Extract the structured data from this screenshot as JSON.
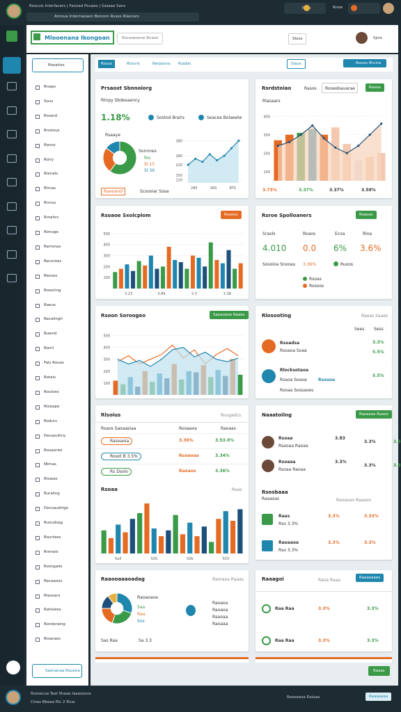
{
  "browser": {
    "tab": "Roscuis Interfacers | Fanoad Pouaes | Gaiaaa Sans",
    "url": "Arnoua Inbernaoaen Benonn Ruses Rlasnars",
    "tab2": "Rloa",
    "tab3": "Rnoe"
  },
  "header": {
    "logo": "Mlooenana Ikongoan",
    "search": "Rocawoaroe Bnaoo",
    "button": "Sloos",
    "user": "Sjuis"
  },
  "tabs": [
    "Rioua",
    "Rlouris",
    "Rerpoons",
    "Ruobls"
  ],
  "actions": [
    "Slaus",
    "Rouou Bruice"
  ],
  "sidebar": {
    "search": "Rooaties",
    "items": [
      "Rnaps",
      "Sous",
      "Rsoerd",
      "Rnotous",
      "Ronos",
      "Roiry",
      "Rienals",
      "Rhnas",
      "Rnnus",
      "Rmahrs",
      "Ronuga",
      "Rerronas",
      "Recontes",
      "Rexsos",
      "Roooring",
      "Raeus",
      "Recalingh",
      "Ruwnd",
      "Rornl",
      "Fals Rouas",
      "Rotais",
      "Rouloes",
      "Rlooape",
      "Rodurs",
      "Decaoutiny",
      "Rouaoriet",
      "Ntmas",
      "Rlowas",
      "Ruraiing",
      "Decuaudrigo",
      "Ruoudsag",
      "Rourtees",
      "Rrenais",
      "Rosngads",
      "Recaaoos",
      "Rlesoars",
      "Ratiseles",
      "Rondsraing",
      "Rioaraes"
    ],
    "footer": "Saonanaa Rouona"
  },
  "cards": [
    {
      "title": "Prsaoxt Sbnnoiorg",
      "subtitle": "Rtnpy Sbdesaency",
      "kpi": "1.18%",
      "legend": [
        "Sostod Bralrs",
        "Seacea Bolaeete"
      ],
      "pie_title": "Rsaaye",
      "pie_legend": [
        "Sonnnes",
        "Rio",
        "Sl 15",
        "Sl 36"
      ],
      "pie": {
        "type": "pie",
        "values": [
          60,
          25,
          15
        ],
        "colors": [
          "#3a9a48",
          "#e56b24",
          "#1f86ad"
        ],
        "donut": true
      },
      "line": {
        "type": "line",
        "ylim": [
          100,
          400
        ],
        "yticks": [
          120,
          150,
          220,
          280,
          380
        ],
        "xlabels": [
          "285",
          "2RS",
          "RTS"
        ],
        "series": [
          {
            "kind": "line",
            "values": [
              220,
              260,
              240,
              290,
              250,
              280,
              330,
              380
            ],
            "color": "#1f86ad",
            "area": "#bfe1ee",
            "markers": true
          }
        ]
      },
      "badge": "Rsesiand",
      "note": "Scsooiar Sosa"
    },
    {
      "title": "Rsrdstoiao",
      "filter": "Rasos",
      "input": "Rooesbauarae",
      "button": "Rasoa",
      "chart_title": "Rlasaars",
      "chart": {
        "type": "combo",
        "ylim": [
          50,
          450
        ],
        "yticks": [
          100,
          200,
          300,
          400
        ],
        "series": [
          {
            "kind": "bar",
            "values": [
              270,
              300,
              310,
              330,
              300,
              340,
              250,
              160,
              180,
              200
            ],
            "colors": [
              "#e56b24",
              "#e56b24",
              "#3a9a48",
              "#1f86ad",
              "#e56b24",
              "#f2c9b0",
              "#f2c9b0",
              "#e4e4e4",
              "#f2c9b0",
              "#f2c9b0"
            ]
          },
          {
            "kind": "line",
            "values": [
              240,
              260,
              300,
              350,
              280,
              230,
              200,
              240,
              300,
              360
            ],
            "color": "#1c4f7a",
            "area": "#f8d3bb",
            "markers": true
          }
        ]
      },
      "kpis": [
        "3.73%",
        "3.37%",
        "3.37%",
        "3.59%"
      ]
    },
    {
      "title": "Rsoaoe Sxolcplom",
      "button": "Rsoeos",
      "chart": {
        "type": "bar",
        "ylim": [
          0,
          550
        ],
        "yticks": [
          100,
          200,
          300,
          400,
          500
        ],
        "xlabels": [
          "3.23",
          "3.89",
          "S 5",
          "3.38"
        ],
        "palette": [
          "#3a9a48",
          "#e56b24",
          "#1f86ad",
          "#1c4f7a"
        ],
        "series": [
          {
            "kind": "bar",
            "values": [
              150,
              180,
              220,
              160,
              250,
              210,
              300,
              180,
              200,
              380,
              260,
              240,
              180,
              300,
              280,
              200,
              420,
              260,
              230,
              350,
              180,
              230
            ]
          }
        ]
      }
    },
    {
      "title": "Rsroe Spolloaners",
      "button": "Rsaoas",
      "columns": [
        "Sraols",
        "Roaos",
        "Ecoa",
        "Rloa"
      ],
      "kpis": [
        "4.010",
        "0.0",
        "6%",
        "3.6%"
      ],
      "detail": [
        "Sosoloa Snooas",
        "3.36%",
        "Ruoos"
      ],
      "legend": [
        "Rsoas",
        "Rosoos"
      ]
    },
    {
      "title": "Rsoon Soroogeo",
      "button": "Saoaoeoe Raaes",
      "chart": {
        "type": "combo",
        "ylim": [
          0,
          550
        ],
        "yticks": [
          100,
          200,
          300,
          400,
          500
        ],
        "palette": [
          "#e56b24",
          "#3a9a48",
          "#1f86ad",
          "#1c4f7a"
        ],
        "series": [
          {
            "kind": "bar",
            "values": [
              120,
              90,
              150,
              70,
              200,
              110,
              180,
              140,
              260,
              130,
              200,
              190,
              250,
              150,
              210,
              160,
              300,
              170
            ]
          },
          {
            "kind": "line",
            "values": [
              280,
              330,
              260,
              300,
              340,
              420,
              310,
              380,
              260,
              340,
              390,
              330
            ],
            "color": "#e56b24"
          },
          {
            "kind": "line",
            "values": [
              300,
              260,
              290,
              240,
              300,
              380,
              400,
              320,
              360,
              300,
              280,
              310
            ],
            "color": "#1f86ad",
            "area": "#bfe1ee"
          }
        ]
      }
    },
    {
      "title": "Rlosooting",
      "filter": "Raeas Saaes",
      "columns": [
        "Sees",
        "Sess"
      ],
      "items": [
        {
          "name": "Rsoadsa",
          "sub": "Rsoaoa Soaa",
          "v1": "3.3%",
          "v2": "5.5%"
        },
        {
          "name": "Rlocksotaoa",
          "sub": "Rsaoa Soaoa",
          "tag": "Rsosoa",
          "v1": "5.5%"
        }
      ],
      "footer": "Rsoaa Sossaoes"
    },
    {
      "title": "Rlsoius",
      "filter": "Rougadcs",
      "columns": [
        "Rsaos Saoaasiaa",
        "Rooaaoa",
        "Raoaas"
      ],
      "rows": [
        [
          "Rasoaoia",
          "3.36%",
          "3.53.0%"
        ],
        [
          "Rosot B 3.5%",
          "Rsoaoaa",
          "3.34%"
        ],
        [
          "Rs Dsolo",
          "Raoaos",
          "3.36%"
        ]
      ],
      "chart_title": "Rsoaa",
      "chart_right": "Raas",
      "chart": {
        "type": "bar",
        "ylim": [
          0,
          300
        ],
        "xlabels": [
          "Sa3",
          "S3S",
          "S3b",
          "S33"
        ],
        "palette": [
          "#3a9a48",
          "#e56b24",
          "#1f86ad",
          "#e56b24",
          "#1c4f7a"
        ],
        "series": [
          {
            "kind": "bar",
            "values": [
              120,
              80,
              150,
              110,
              180,
              210,
              260,
              130,
              90,
              120,
              200,
              100,
              160,
              90,
              140,
              60,
              180,
              220,
              170,
              230
            ]
          }
        ]
      }
    },
    {
      "title": "Naaatoilng",
      "button": "Raoasaa Raaos",
      "people": [
        {
          "name": "Rsoaa",
          "sub": "Rsaoaa Raoaa",
          "v": [
            "3.83",
            "3.3%",
            "3.3S.3%"
          ]
        },
        {
          "name": "Rsoaaa",
          "sub": "Rsoaa Raoaa",
          "v": [
            "3.3%",
            "3.3%",
            "3.35%"
          ]
        }
      ],
      "section": "Rsosbaaa",
      "section_sub": "Raaasas",
      "section_right": "Raoaoao Raaaos",
      "rows": [
        {
          "name": "Raas",
          "sub": "Rso 3.3%",
          "v": [
            "3.3%",
            "3.33%"
          ]
        },
        {
          "name": "Raoaaoa",
          "sub": "Rso 3.3%",
          "v": [
            "3.3%",
            "3.3%"
          ]
        }
      ]
    },
    {
      "title": "Raaooaaaoadag",
      "filter": "Raoraoa Raaas",
      "pie": {
        "type": "pie",
        "values": [
          30,
          25,
          20,
          15,
          10
        ],
        "colors": [
          "#1f86ad",
          "#3a9a48",
          "#e56b24",
          "#1c4f7a",
          "#e8b040"
        ],
        "donut": true
      },
      "legend": [
        "Raoaoaoa",
        "Saa",
        "Raa",
        "Sos"
      ],
      "items": [
        "Raoaoa",
        "Raoaoa",
        "Raaoaa",
        "Raoaaa"
      ],
      "footer": [
        "Sas Raa",
        "Sa 3.3"
      ]
    },
    {
      "title": "Raaagoi",
      "filter": "Raoa Raaa",
      "button": "Raaaoaaes",
      "rows": [
        {
          "name": "Raa Raa",
          "v": [
            "3.3%",
            "3.3%"
          ]
        },
        {
          "name": "Raa Raa",
          "v": [
            "3.3%",
            "3.3%"
          ]
        }
      ]
    }
  ],
  "bottom": {
    "button": "Raaas"
  },
  "status": {
    "left": "Rsosecua Taal Shaaa Iaaasoous",
    "left2": "Cloas Bbaaa Rlc 2 Rlua",
    "right": "Rasoaeoa Ealuaa",
    "button": "Raaaaaaa"
  }
}
